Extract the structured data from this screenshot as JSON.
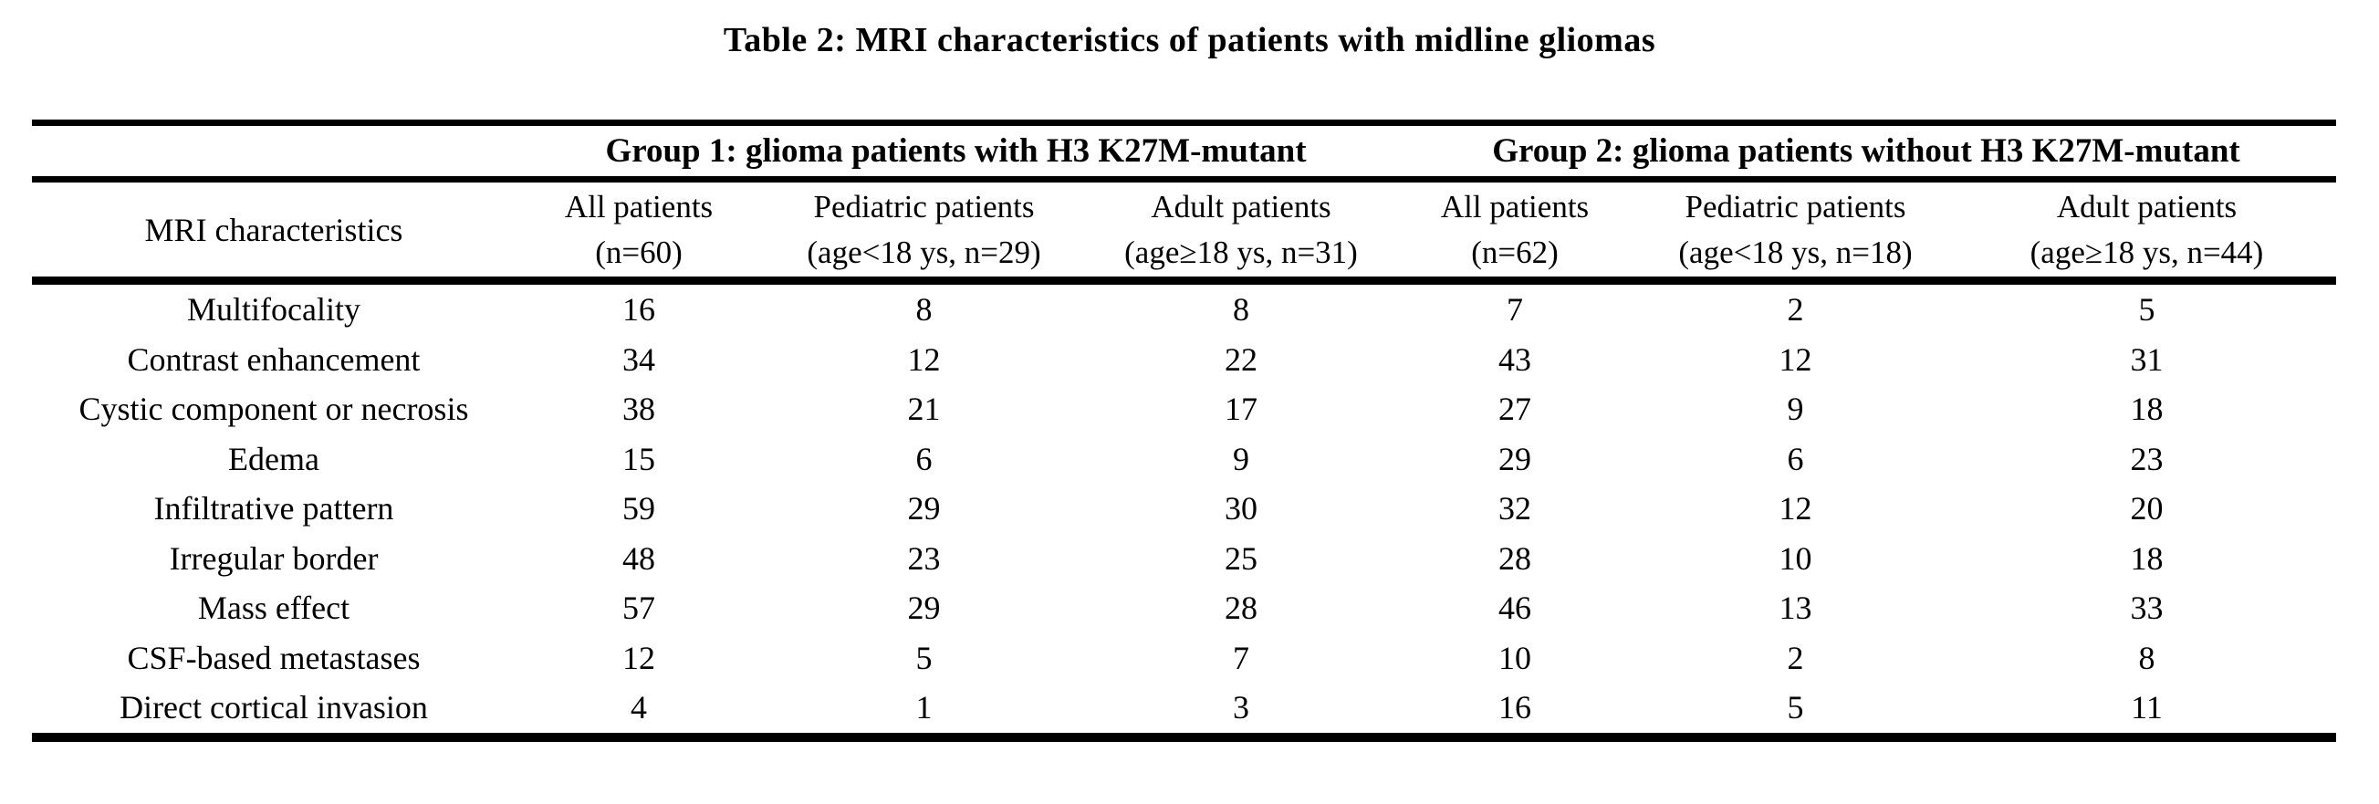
{
  "title": "Table 2: MRI characteristics of patients with midline gliomas",
  "table": {
    "row_header_label": "MRI characteristics",
    "groups": [
      {
        "label": "Group 1: glioma patients with H3 K27M-mutant"
      },
      {
        "label": "Group 2: glioma patients without H3 K27M-mutant"
      }
    ],
    "columns": [
      {
        "line1": "All patients",
        "line2": "(n=60)"
      },
      {
        "line1": "Pediatric patients",
        "line2": "(age<18 ys, n=29)"
      },
      {
        "line1": "Adult patients",
        "line2": "(age≥18 ys, n=31)"
      },
      {
        "line1": "All patients",
        "line2": "(n=62)"
      },
      {
        "line1": "Pediatric patients",
        "line2": "(age<18 ys, n=18)"
      },
      {
        "line1": "Adult patients",
        "line2": "(age≥18 ys, n=44)"
      }
    ],
    "rows": [
      {
        "label": "Multifocality",
        "values": [
          "16",
          "8",
          "8",
          "7",
          "2",
          "5"
        ]
      },
      {
        "label": "Contrast enhancement",
        "values": [
          "34",
          "12",
          "22",
          "43",
          "12",
          "31"
        ]
      },
      {
        "label": "Cystic component or necrosis",
        "values": [
          "38",
          "21",
          "17",
          "27",
          "9",
          "18"
        ]
      },
      {
        "label": "Edema",
        "values": [
          "15",
          "6",
          "9",
          "29",
          "6",
          "23"
        ]
      },
      {
        "label": "Infiltrative pattern",
        "values": [
          "59",
          "29",
          "30",
          "32",
          "12",
          "20"
        ]
      },
      {
        "label": "Irregular border",
        "values": [
          "48",
          "23",
          "25",
          "28",
          "10",
          "18"
        ]
      },
      {
        "label": "Mass effect",
        "values": [
          "57",
          "29",
          "28",
          "46",
          "13",
          "33"
        ]
      },
      {
        "label": "CSF-based metastases",
        "values": [
          "12",
          "5",
          "7",
          "10",
          "2",
          "8"
        ]
      },
      {
        "label": "Direct cortical invasion",
        "values": [
          "4",
          "1",
          "3",
          "16",
          "5",
          "11"
        ]
      }
    ]
  },
  "colors": {
    "text": "#000000",
    "background": "#ffffff",
    "rule": "#000000"
  }
}
